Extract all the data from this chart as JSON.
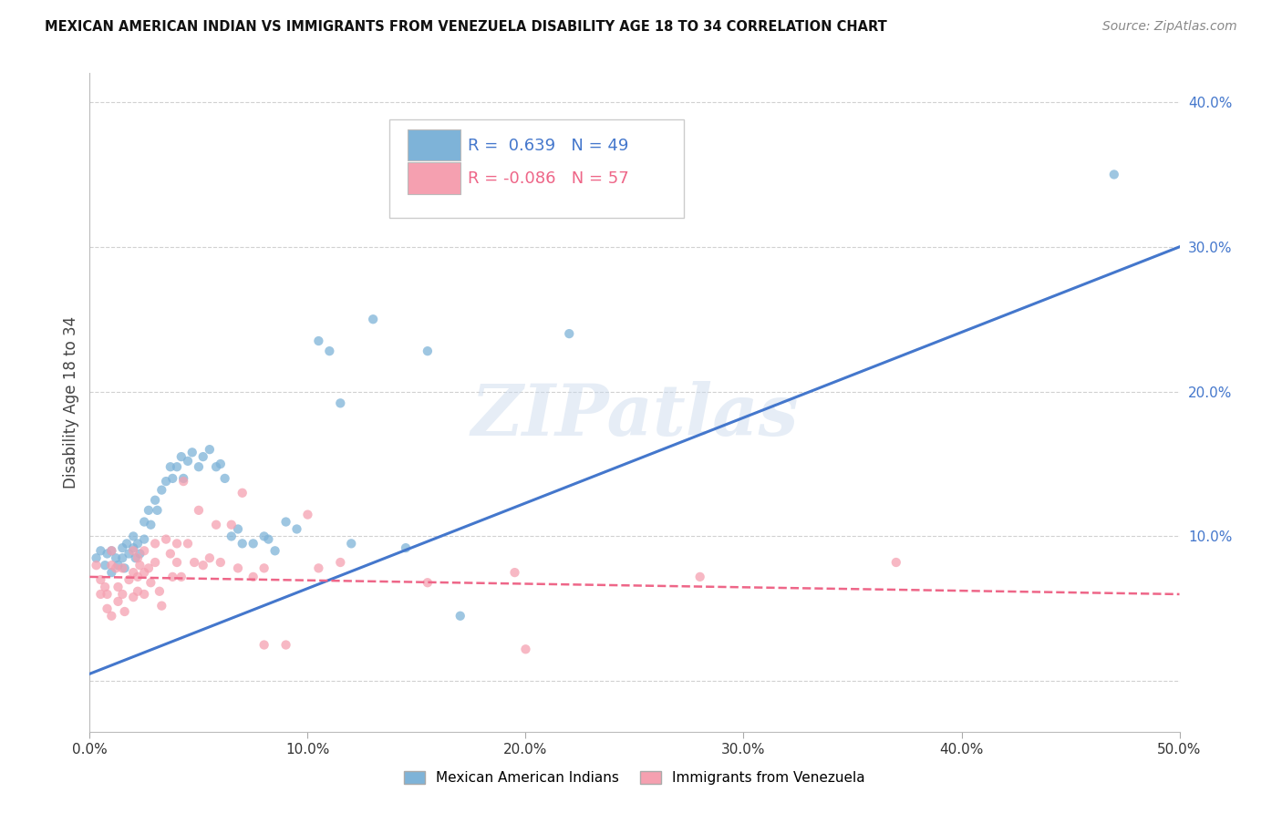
{
  "title": "MEXICAN AMERICAN INDIAN VS IMMIGRANTS FROM VENEZUELA DISABILITY AGE 18 TO 34 CORRELATION CHART",
  "source": "Source: ZipAtlas.com",
  "ylabel": "Disability Age 18 to 34",
  "xlim": [
    0.0,
    0.5
  ],
  "ylim": [
    -0.035,
    0.42
  ],
  "xticks": [
    0.0,
    0.1,
    0.2,
    0.3,
    0.4,
    0.5
  ],
  "yticks": [
    0.0,
    0.1,
    0.2,
    0.3,
    0.4
  ],
  "xtick_labels": [
    "0.0%",
    "10.0%",
    "20.0%",
    "30.0%",
    "40.0%",
    "50.0%"
  ],
  "ytick_labels": [
    "",
    "10.0%",
    "20.0%",
    "30.0%",
    "40.0%"
  ],
  "legend_labels_bottom": [
    "Mexican American Indians",
    "Immigrants from Venezuela"
  ],
  "blue_color": "#7EB3D8",
  "pink_color": "#F5A0B0",
  "blue_line_color": "#4477CC",
  "pink_line_color": "#EE6688",
  "watermark": "ZIPatlas",
  "blue_scatter_x": [
    0.003,
    0.005,
    0.007,
    0.008,
    0.01,
    0.01,
    0.012,
    0.013,
    0.015,
    0.015,
    0.016,
    0.017,
    0.018,
    0.02,
    0.02,
    0.021,
    0.022,
    0.023,
    0.025,
    0.025,
    0.027,
    0.028,
    0.03,
    0.031,
    0.033,
    0.035,
    0.037,
    0.038,
    0.04,
    0.042,
    0.043,
    0.045,
    0.047,
    0.05,
    0.052,
    0.055,
    0.058,
    0.06,
    0.062,
    0.065,
    0.068,
    0.07,
    0.075,
    0.08,
    0.082,
    0.085,
    0.09,
    0.095,
    0.105,
    0.11,
    0.115,
    0.12,
    0.13,
    0.145,
    0.155,
    0.17,
    0.22,
    0.47
  ],
  "blue_scatter_y": [
    0.085,
    0.09,
    0.08,
    0.088,
    0.09,
    0.075,
    0.085,
    0.08,
    0.092,
    0.085,
    0.078,
    0.095,
    0.088,
    0.092,
    0.1,
    0.085,
    0.095,
    0.088,
    0.11,
    0.098,
    0.118,
    0.108,
    0.125,
    0.118,
    0.132,
    0.138,
    0.148,
    0.14,
    0.148,
    0.155,
    0.14,
    0.152,
    0.158,
    0.148,
    0.155,
    0.16,
    0.148,
    0.15,
    0.14,
    0.1,
    0.105,
    0.095,
    0.095,
    0.1,
    0.098,
    0.09,
    0.11,
    0.105,
    0.235,
    0.228,
    0.192,
    0.095,
    0.25,
    0.092,
    0.228,
    0.045,
    0.24,
    0.35
  ],
  "pink_scatter_x": [
    0.003,
    0.005,
    0.005,
    0.007,
    0.008,
    0.008,
    0.01,
    0.01,
    0.01,
    0.012,
    0.013,
    0.013,
    0.015,
    0.015,
    0.016,
    0.018,
    0.02,
    0.02,
    0.02,
    0.022,
    0.022,
    0.022,
    0.023,
    0.025,
    0.025,
    0.025,
    0.027,
    0.028,
    0.03,
    0.03,
    0.032,
    0.033,
    0.035,
    0.037,
    0.038,
    0.04,
    0.04,
    0.042,
    0.043,
    0.045,
    0.048,
    0.05,
    0.052,
    0.055,
    0.058,
    0.06,
    0.065,
    0.068,
    0.07,
    0.075,
    0.08,
    0.08,
    0.09,
    0.1,
    0.105,
    0.115,
    0.155,
    0.195,
    0.2,
    0.28,
    0.37
  ],
  "pink_scatter_y": [
    0.08,
    0.07,
    0.06,
    0.065,
    0.06,
    0.05,
    0.09,
    0.08,
    0.045,
    0.078,
    0.065,
    0.055,
    0.078,
    0.06,
    0.048,
    0.07,
    0.09,
    0.075,
    0.058,
    0.085,
    0.072,
    0.062,
    0.08,
    0.09,
    0.075,
    0.06,
    0.078,
    0.068,
    0.095,
    0.082,
    0.062,
    0.052,
    0.098,
    0.088,
    0.072,
    0.095,
    0.082,
    0.072,
    0.138,
    0.095,
    0.082,
    0.118,
    0.08,
    0.085,
    0.108,
    0.082,
    0.108,
    0.078,
    0.13,
    0.072,
    0.078,
    0.025,
    0.025,
    0.115,
    0.078,
    0.082,
    0.068,
    0.075,
    0.022,
    0.072,
    0.082
  ],
  "blue_line_x": [
    0.0,
    0.5
  ],
  "blue_line_y": [
    0.005,
    0.3
  ],
  "pink_line_x": [
    0.0,
    0.5
  ],
  "pink_line_y": [
    0.072,
    0.06
  ],
  "background_color": "#FFFFFF",
  "grid_color": "#CCCCCC"
}
